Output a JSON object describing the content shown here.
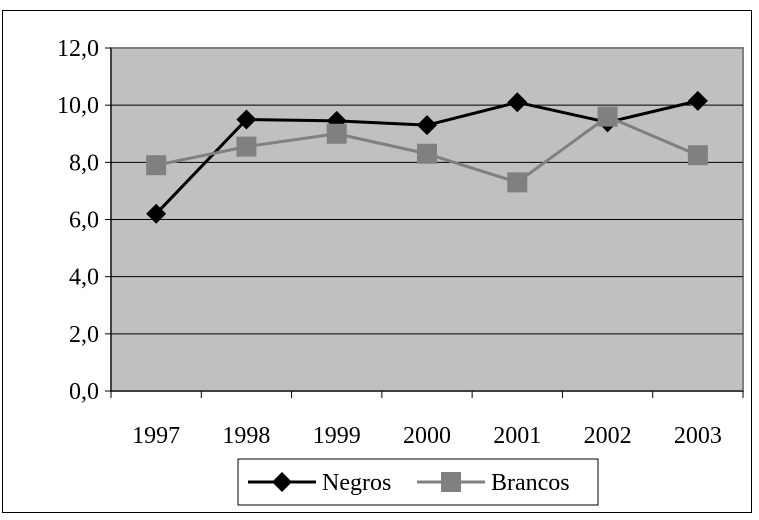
{
  "chart_data": {
    "type": "line",
    "categories": [
      "1997",
      "1998",
      "1999",
      "2000",
      "2001",
      "2002",
      "2003"
    ],
    "series": [
      {
        "name": "Negros",
        "values": [
          6.2,
          9.5,
          9.45,
          9.3,
          10.1,
          9.4,
          10.15
        ],
        "color": "#000000",
        "marker": "diamond"
      },
      {
        "name": "Brancos",
        "values": [
          7.9,
          8.55,
          9.0,
          8.3,
          7.3,
          9.6,
          8.25
        ],
        "color": "#808080",
        "marker": "square"
      }
    ],
    "y_ticks": [
      "0,0",
      "2,0",
      "4,0",
      "6,0",
      "8,0",
      "10,0",
      "12,0"
    ],
    "ylim": [
      0,
      12
    ],
    "grid": true,
    "plot_background": "#c0c0c0",
    "legend_position": "bottom"
  }
}
